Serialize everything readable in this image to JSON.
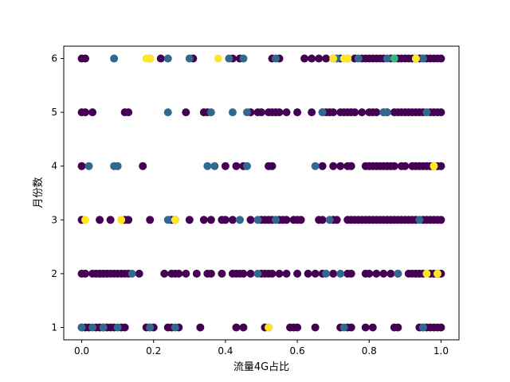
{
  "chart_data": {
    "type": "scatter",
    "xlabel": "流量4G占比",
    "ylabel": "月份数",
    "xlim": [
      -0.05,
      1.05
    ],
    "ylim": [
      0.77,
      6.23
    ],
    "xticks": [
      0.0,
      0.2,
      0.4,
      0.6,
      0.8,
      1.0
    ],
    "xtick_labels": [
      "0.0",
      "0.2",
      "0.4",
      "0.6",
      "0.8",
      "1.0"
    ],
    "yticks": [
      1,
      2,
      3,
      4,
      5,
      6
    ],
    "ytick_labels": [
      "1",
      "2",
      "3",
      "4",
      "5",
      "6"
    ],
    "grid": false,
    "colormap": "viridis",
    "color_classes": {
      "purple": "#440154",
      "blue": "#31688e",
      "green": "#35b779",
      "yellow": "#fde725"
    },
    "series": [
      {
        "color": "purple",
        "points": [
          [
            0.0,
            6
          ],
          [
            0.01,
            6
          ],
          [
            0.19,
            6
          ],
          [
            0.22,
            6
          ],
          [
            0.31,
            6
          ],
          [
            0.42,
            6
          ],
          [
            0.44,
            6
          ],
          [
            0.53,
            6
          ],
          [
            0.55,
            6
          ],
          [
            0.62,
            6
          ],
          [
            0.64,
            6
          ],
          [
            0.66,
            6
          ],
          [
            0.68,
            6
          ],
          [
            0.7,
            6
          ],
          [
            0.72,
            6
          ],
          [
            0.74,
            6
          ],
          [
            0.76,
            6
          ],
          [
            0.78,
            6
          ],
          [
            0.79,
            6
          ],
          [
            0.8,
            6
          ],
          [
            0.81,
            6
          ],
          [
            0.82,
            6
          ],
          [
            0.83,
            6
          ],
          [
            0.84,
            6
          ],
          [
            0.86,
            6
          ],
          [
            0.87,
            6
          ],
          [
            0.88,
            6
          ],
          [
            0.89,
            6
          ],
          [
            0.9,
            6
          ],
          [
            0.91,
            6
          ],
          [
            0.92,
            6
          ],
          [
            0.93,
            6
          ],
          [
            0.94,
            6
          ],
          [
            0.95,
            6
          ],
          [
            0.96,
            6
          ],
          [
            0.97,
            6
          ],
          [
            0.98,
            6
          ],
          [
            0.99,
            6
          ],
          [
            1.0,
            6
          ],
          [
            0.0,
            5
          ],
          [
            0.01,
            5
          ],
          [
            0.03,
            5
          ],
          [
            0.12,
            5
          ],
          [
            0.13,
            5
          ],
          [
            0.29,
            5
          ],
          [
            0.34,
            5
          ],
          [
            0.35,
            5
          ],
          [
            0.47,
            5
          ],
          [
            0.49,
            5
          ],
          [
            0.5,
            5
          ],
          [
            0.52,
            5
          ],
          [
            0.53,
            5
          ],
          [
            0.54,
            5
          ],
          [
            0.55,
            5
          ],
          [
            0.57,
            5
          ],
          [
            0.6,
            5
          ],
          [
            0.64,
            5
          ],
          [
            0.67,
            5
          ],
          [
            0.68,
            5
          ],
          [
            0.69,
            5
          ],
          [
            0.7,
            5
          ],
          [
            0.72,
            5
          ],
          [
            0.73,
            5
          ],
          [
            0.74,
            5
          ],
          [
            0.75,
            5
          ],
          [
            0.76,
            5
          ],
          [
            0.78,
            5
          ],
          [
            0.8,
            5
          ],
          [
            0.81,
            5
          ],
          [
            0.82,
            5
          ],
          [
            0.84,
            5
          ],
          [
            0.85,
            5
          ],
          [
            0.87,
            5
          ],
          [
            0.88,
            5
          ],
          [
            0.89,
            5
          ],
          [
            0.9,
            5
          ],
          [
            0.91,
            5
          ],
          [
            0.92,
            5
          ],
          [
            0.93,
            5
          ],
          [
            0.94,
            5
          ],
          [
            0.95,
            5
          ],
          [
            0.97,
            5
          ],
          [
            0.98,
            5
          ],
          [
            0.99,
            5
          ],
          [
            1.0,
            5
          ],
          [
            0.0,
            4
          ],
          [
            0.17,
            4
          ],
          [
            0.4,
            4
          ],
          [
            0.43,
            4
          ],
          [
            0.45,
            4
          ],
          [
            0.52,
            4
          ],
          [
            0.53,
            4
          ],
          [
            0.67,
            4
          ],
          [
            0.7,
            4
          ],
          [
            0.72,
            4
          ],
          [
            0.74,
            4
          ],
          [
            0.75,
            4
          ],
          [
            0.79,
            4
          ],
          [
            0.8,
            4
          ],
          [
            0.81,
            4
          ],
          [
            0.82,
            4
          ],
          [
            0.83,
            4
          ],
          [
            0.84,
            4
          ],
          [
            0.85,
            4
          ],
          [
            0.86,
            4
          ],
          [
            0.87,
            4
          ],
          [
            0.89,
            4
          ],
          [
            0.9,
            4
          ],
          [
            0.92,
            4
          ],
          [
            0.93,
            4
          ],
          [
            0.94,
            4
          ],
          [
            0.95,
            4
          ],
          [
            0.96,
            4
          ],
          [
            0.97,
            4
          ],
          [
            0.99,
            4
          ],
          [
            1.0,
            4
          ],
          [
            0.0,
            3
          ],
          [
            0.05,
            3
          ],
          [
            0.08,
            3
          ],
          [
            0.12,
            3
          ],
          [
            0.13,
            3
          ],
          [
            0.19,
            3
          ],
          [
            0.25,
            3
          ],
          [
            0.26,
            3
          ],
          [
            0.3,
            3
          ],
          [
            0.34,
            3
          ],
          [
            0.36,
            3
          ],
          [
            0.39,
            3
          ],
          [
            0.4,
            3
          ],
          [
            0.42,
            3
          ],
          [
            0.47,
            3
          ],
          [
            0.5,
            3
          ],
          [
            0.51,
            3
          ],
          [
            0.52,
            3
          ],
          [
            0.53,
            3
          ],
          [
            0.55,
            3
          ],
          [
            0.56,
            3
          ],
          [
            0.57,
            3
          ],
          [
            0.59,
            3
          ],
          [
            0.6,
            3
          ],
          [
            0.61,
            3
          ],
          [
            0.66,
            3
          ],
          [
            0.67,
            3
          ],
          [
            0.7,
            3
          ],
          [
            0.71,
            3
          ],
          [
            0.74,
            3
          ],
          [
            0.75,
            3
          ],
          [
            0.76,
            3
          ],
          [
            0.77,
            3
          ],
          [
            0.78,
            3
          ],
          [
            0.79,
            3
          ],
          [
            0.8,
            3
          ],
          [
            0.81,
            3
          ],
          [
            0.82,
            3
          ],
          [
            0.83,
            3
          ],
          [
            0.84,
            3
          ],
          [
            0.85,
            3
          ],
          [
            0.86,
            3
          ],
          [
            0.87,
            3
          ],
          [
            0.88,
            3
          ],
          [
            0.89,
            3
          ],
          [
            0.9,
            3
          ],
          [
            0.91,
            3
          ],
          [
            0.92,
            3
          ],
          [
            0.93,
            3
          ],
          [
            0.95,
            3
          ],
          [
            0.96,
            3
          ],
          [
            0.97,
            3
          ],
          [
            0.98,
            3
          ],
          [
            0.99,
            3
          ],
          [
            1.0,
            3
          ],
          [
            0.0,
            2
          ],
          [
            0.01,
            2
          ],
          [
            0.03,
            2
          ],
          [
            0.04,
            2
          ],
          [
            0.05,
            2
          ],
          [
            0.06,
            2
          ],
          [
            0.07,
            2
          ],
          [
            0.08,
            2
          ],
          [
            0.09,
            2
          ],
          [
            0.1,
            2
          ],
          [
            0.11,
            2
          ],
          [
            0.12,
            2
          ],
          [
            0.13,
            2
          ],
          [
            0.16,
            2
          ],
          [
            0.23,
            2
          ],
          [
            0.25,
            2
          ],
          [
            0.26,
            2
          ],
          [
            0.27,
            2
          ],
          [
            0.29,
            2
          ],
          [
            0.32,
            2
          ],
          [
            0.35,
            2
          ],
          [
            0.36,
            2
          ],
          [
            0.39,
            2
          ],
          [
            0.42,
            2
          ],
          [
            0.43,
            2
          ],
          [
            0.44,
            2
          ],
          [
            0.45,
            2
          ],
          [
            0.47,
            2
          ],
          [
            0.5,
            2
          ],
          [
            0.51,
            2
          ],
          [
            0.52,
            2
          ],
          [
            0.53,
            2
          ],
          [
            0.55,
            2
          ],
          [
            0.57,
            2
          ],
          [
            0.6,
            2
          ],
          [
            0.63,
            2
          ],
          [
            0.65,
            2
          ],
          [
            0.67,
            2
          ],
          [
            0.7,
            2
          ],
          [
            0.74,
            2
          ],
          [
            0.75,
            2
          ],
          [
            0.79,
            2
          ],
          [
            0.8,
            2
          ],
          [
            0.82,
            2
          ],
          [
            0.84,
            2
          ],
          [
            0.86,
            2
          ],
          [
            0.88,
            2
          ],
          [
            0.91,
            2
          ],
          [
            0.92,
            2
          ],
          [
            0.93,
            2
          ],
          [
            0.94,
            2
          ],
          [
            0.95,
            2
          ],
          [
            0.97,
            2
          ],
          [
            0.98,
            2
          ],
          [
            0.99,
            2
          ],
          [
            1.0,
            2
          ],
          [
            0.0,
            1
          ],
          [
            0.01,
            1
          ],
          [
            0.02,
            1
          ],
          [
            0.04,
            1
          ],
          [
            0.05,
            1
          ],
          [
            0.06,
            1
          ],
          [
            0.07,
            1
          ],
          [
            0.08,
            1
          ],
          [
            0.09,
            1
          ],
          [
            0.11,
            1
          ],
          [
            0.12,
            1
          ],
          [
            0.18,
            1
          ],
          [
            0.19,
            1
          ],
          [
            0.2,
            1
          ],
          [
            0.24,
            1
          ],
          [
            0.25,
            1
          ],
          [
            0.27,
            1
          ],
          [
            0.33,
            1
          ],
          [
            0.43,
            1
          ],
          [
            0.45,
            1
          ],
          [
            0.51,
            1
          ],
          [
            0.52,
            1
          ],
          [
            0.58,
            1
          ],
          [
            0.59,
            1
          ],
          [
            0.6,
            1
          ],
          [
            0.65,
            1
          ],
          [
            0.72,
            1
          ],
          [
            0.74,
            1
          ],
          [
            0.75,
            1
          ],
          [
            0.79,
            1
          ],
          [
            0.81,
            1
          ],
          [
            0.87,
            1
          ],
          [
            0.88,
            1
          ],
          [
            0.94,
            1
          ],
          [
            0.95,
            1
          ],
          [
            0.96,
            1
          ],
          [
            0.97,
            1
          ],
          [
            0.98,
            1
          ],
          [
            0.99,
            1
          ],
          [
            1.0,
            1
          ]
        ]
      },
      {
        "color": "blue",
        "points": [
          [
            0.09,
            6
          ],
          [
            0.24,
            6
          ],
          [
            0.3,
            6
          ],
          [
            0.41,
            6
          ],
          [
            0.45,
            6
          ],
          [
            0.54,
            6
          ],
          [
            0.71,
            6
          ],
          [
            0.77,
            6
          ],
          [
            0.85,
            6
          ],
          [
            0.93,
            6
          ],
          [
            0.95,
            6
          ],
          [
            0.24,
            5
          ],
          [
            0.36,
            5
          ],
          [
            0.42,
            5
          ],
          [
            0.46,
            5
          ],
          [
            0.67,
            5
          ],
          [
            0.84,
            5
          ],
          [
            0.85,
            5
          ],
          [
            0.96,
            5
          ],
          [
            0.02,
            4
          ],
          [
            0.09,
            4
          ],
          [
            0.1,
            4
          ],
          [
            0.35,
            4
          ],
          [
            0.37,
            4
          ],
          [
            0.46,
            4
          ],
          [
            0.65,
            4
          ],
          [
            0.98,
            4
          ],
          [
            0.24,
            3
          ],
          [
            0.44,
            3
          ],
          [
            0.49,
            3
          ],
          [
            0.54,
            3
          ],
          [
            0.69,
            3
          ],
          [
            0.94,
            3
          ],
          [
            0.14,
            2
          ],
          [
            0.49,
            2
          ],
          [
            0.68,
            2
          ],
          [
            0.72,
            2
          ],
          [
            0.88,
            2
          ],
          [
            0.0,
            1
          ],
          [
            0.03,
            1
          ],
          [
            0.06,
            1
          ],
          [
            0.1,
            1
          ],
          [
            0.19,
            1
          ],
          [
            0.26,
            1
          ],
          [
            0.73,
            1
          ],
          [
            0.95,
            1
          ]
        ]
      },
      {
        "color": "green",
        "points": [
          [
            0.87,
            6
          ]
        ]
      },
      {
        "color": "yellow",
        "points": [
          [
            0.18,
            6
          ],
          [
            0.19,
            6
          ],
          [
            0.38,
            6
          ],
          [
            0.7,
            6
          ],
          [
            0.73,
            6
          ],
          [
            0.74,
            6
          ],
          [
            0.93,
            6
          ],
          [
            0.98,
            4
          ],
          [
            0.01,
            3
          ],
          [
            0.11,
            3
          ],
          [
            0.26,
            3
          ],
          [
            0.96,
            2
          ],
          [
            0.99,
            2
          ],
          [
            0.52,
            1
          ]
        ]
      }
    ]
  }
}
